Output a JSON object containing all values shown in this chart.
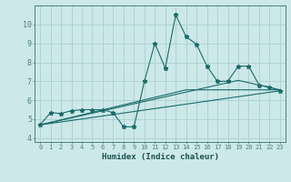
{
  "xlabel": "Humidex (Indice chaleur)",
  "background_color": "#cce8e8",
  "grid_color": "#aad0d0",
  "line_color": "#1a6b6b",
  "xlim": [
    -0.5,
    23.5
  ],
  "ylim": [
    3.8,
    11.0
  ],
  "yticks": [
    4,
    5,
    6,
    7,
    8,
    9,
    10
  ],
  "xticks": [
    0,
    1,
    2,
    3,
    4,
    5,
    6,
    7,
    8,
    9,
    10,
    11,
    12,
    13,
    14,
    15,
    16,
    17,
    18,
    19,
    20,
    21,
    22,
    23
  ],
  "lines": [
    {
      "x": [
        0,
        1,
        2,
        3,
        4,
        5,
        6,
        7,
        8,
        9,
        10,
        11,
        12,
        13,
        14,
        15,
        16,
        17,
        18,
        19,
        20,
        21,
        22,
        23
      ],
      "y": [
        4.7,
        5.35,
        5.3,
        5.45,
        5.5,
        5.5,
        5.5,
        5.35,
        4.6,
        4.6,
        7.0,
        9.0,
        7.7,
        10.5,
        9.35,
        8.95,
        7.8,
        7.0,
        7.0,
        7.8,
        7.8,
        6.8,
        6.7,
        6.5
      ]
    },
    {
      "x": [
        0,
        23
      ],
      "y": [
        4.7,
        6.5
      ]
    },
    {
      "x": [
        0,
        14,
        23
      ],
      "y": [
        4.7,
        6.55,
        6.55
      ]
    },
    {
      "x": [
        0,
        19,
        23
      ],
      "y": [
        4.7,
        7.05,
        6.55
      ]
    }
  ]
}
